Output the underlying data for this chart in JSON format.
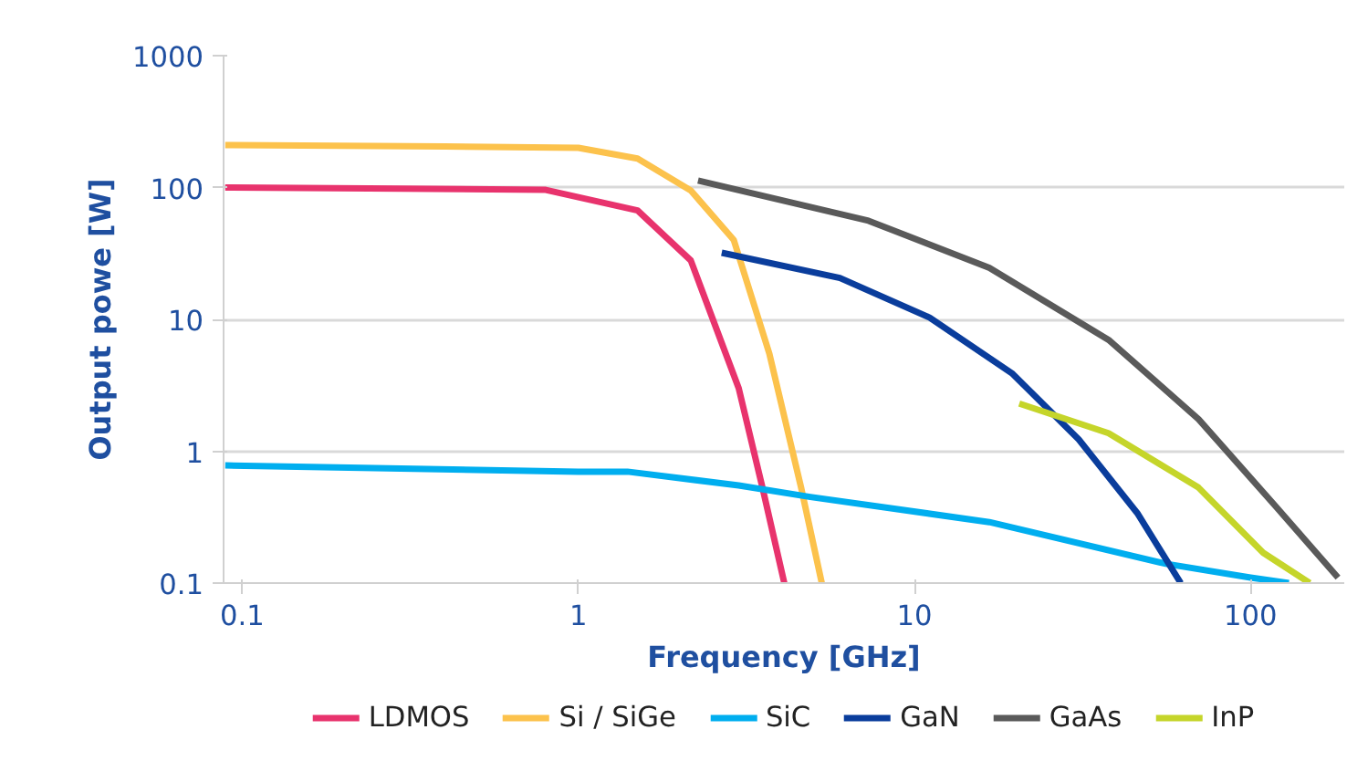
{
  "chart_data": {
    "type": "line",
    "xlabel": "Frequency [GHz]",
    "ylabel": "Output powe [W]",
    "log": "xy",
    "grid": "y",
    "legend": "bottom",
    "xlim": [
      0.088,
      190
    ],
    "ylim": [
      0.1,
      1000
    ],
    "xticks": [
      0.1,
      1,
      10,
      100
    ],
    "yticks": [
      0.1,
      1,
      10,
      100,
      1000
    ],
    "series": [
      {
        "name": "LDMOS",
        "color": "#e8336d",
        "x": [
          0.089,
          0.3,
          0.8,
          1.5,
          2.16,
          3.0,
          3.53,
          4.1
        ],
        "values": [
          100,
          98,
          96,
          67,
          28,
          3.0,
          0.53,
          0.1
        ]
      },
      {
        "name": "Si / SiGe",
        "color": "#fcc24c",
        "x": [
          0.089,
          0.4,
          1,
          1.5,
          2.16,
          2.9,
          3.7,
          4.6,
          5.3
        ],
        "values": [
          210,
          205,
          200,
          166,
          95,
          40,
          5.5,
          0.53,
          0.1
        ]
      },
      {
        "name": "SiC",
        "color": "#00aeef",
        "x": [
          0.089,
          1,
          1.4,
          3.0,
          4.9,
          16.7,
          56,
          100,
          130
        ],
        "values": [
          0.78,
          0.7,
          0.7,
          0.55,
          0.45,
          0.29,
          0.14,
          0.11,
          0.1
        ]
      },
      {
        "name": "GaN",
        "color": "#0a3d9c",
        "x": [
          2.67,
          6.0,
          11.1,
          19.5,
          30.8,
          46,
          62
        ],
        "values": [
          32,
          20.6,
          10.3,
          3.9,
          1.23,
          0.34,
          0.1
        ]
      },
      {
        "name": "GaAs",
        "color": "#5a5a5a",
        "x": [
          2.27,
          7.3,
          16.7,
          37.8,
          70,
          119,
          182
        ],
        "values": [
          113,
          56,
          24.6,
          7.0,
          1.75,
          0.38,
          0.11
        ]
      },
      {
        "name": "InP",
        "color": "#c5d52a",
        "x": [
          20.5,
          37.8,
          70,
          109,
          150
        ],
        "values": [
          2.3,
          1.37,
          0.53,
          0.17,
          0.1
        ]
      }
    ]
  }
}
